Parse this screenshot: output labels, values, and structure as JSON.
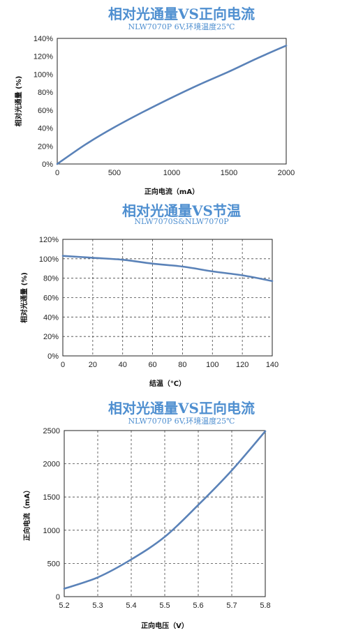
{
  "chart_data": [
    {
      "type": "line",
      "title": "相对光通量VS正向电流",
      "subtitle": "NLW7070P  6V,环境温度25℃",
      "xlabel": "正向电流（mA）",
      "ylabel": "相对光通量 (%)",
      "xlim": [
        0,
        2000
      ],
      "ylim": [
        0,
        140
      ],
      "xticks": [
        "0",
        "500",
        "1000",
        "1500",
        "2000"
      ],
      "yticks": [
        "0%",
        "20%",
        "40%",
        "60%",
        "80%",
        "100%",
        "120%",
        "140%"
      ],
      "grid": "none",
      "color": "#5a82b8",
      "x": [
        0,
        250,
        500,
        750,
        1000,
        1250,
        1500,
        1750,
        2000
      ],
      "y": [
        0,
        22,
        41,
        58,
        74,
        89,
        103,
        118,
        132
      ]
    },
    {
      "type": "line",
      "title": "相对光通量VS节温",
      "subtitle": "NLW7070S&NLW7070P",
      "xlabel": "结温（℃）",
      "ylabel": "相对光通量 (%)",
      "xlim": [
        0,
        140
      ],
      "ylim": [
        0,
        120
      ],
      "xticks": [
        "0",
        "20",
        "40",
        "60",
        "80",
        "100",
        "120",
        "140"
      ],
      "yticks": [
        "0%",
        "20%",
        "40%",
        "60%",
        "80%",
        "100%",
        "120%"
      ],
      "grid": "dashed",
      "color": "#5a82b8",
      "x": [
        0,
        20,
        40,
        60,
        80,
        100,
        120,
        140
      ],
      "y": [
        103,
        101,
        99,
        95,
        92,
        87,
        83,
        77
      ]
    },
    {
      "type": "line",
      "title": "相对光通量VS正向电流",
      "subtitle": "NLW7070P  6V,环境温度25℃",
      "xlabel": "正向电压（V）",
      "ylabel": "正向电流（mA）",
      "xlim": [
        5.2,
        5.8
      ],
      "ylim": [
        0,
        2500
      ],
      "xticks": [
        "5.2",
        "5.3",
        "5.4",
        "5.5",
        "5.6",
        "5.7",
        "5.8"
      ],
      "yticks": [
        "0",
        "500",
        "1000",
        "1500",
        "2000",
        "2500"
      ],
      "grid": "dashed",
      "color": "#5a82b8",
      "x": [
        5.2,
        5.3,
        5.4,
        5.5,
        5.6,
        5.7,
        5.8
      ],
      "y": [
        120,
        290,
        560,
        900,
        1380,
        1900,
        2490
      ]
    }
  ]
}
